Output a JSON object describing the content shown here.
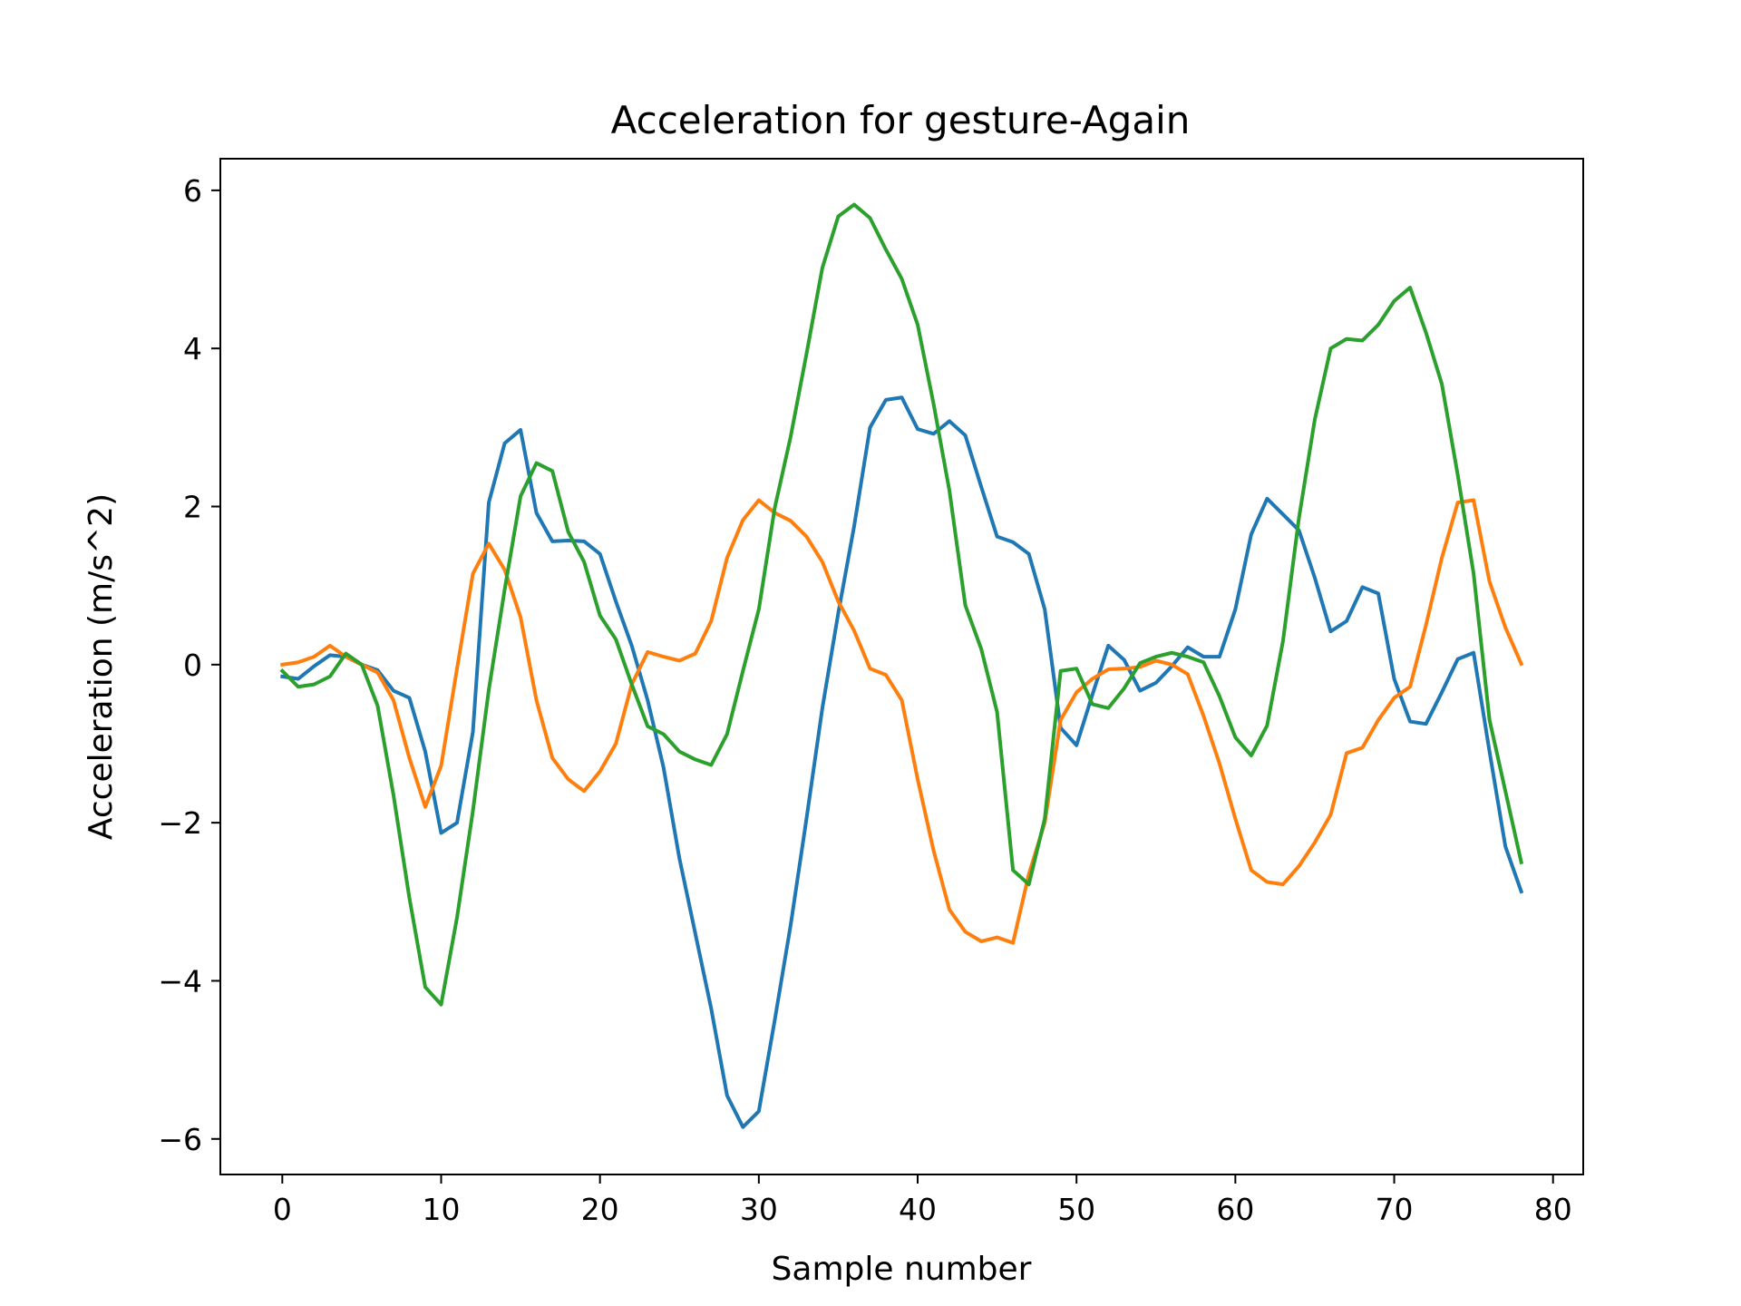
{
  "chart_data": {
    "type": "line",
    "title": "Acceleration for gesture-Again",
    "xlabel": "Sample number",
    "ylabel": "Acceleration (m/s^2)",
    "xlim": [
      -3.9,
      81.9
    ],
    "ylim": [
      -6.45,
      6.4
    ],
    "xticks": [
      0,
      10,
      20,
      30,
      40,
      50,
      60,
      70,
      80
    ],
    "xtick_labels": [
      "0",
      "10",
      "20",
      "30",
      "40",
      "50",
      "60",
      "70",
      "80"
    ],
    "yticks": [
      -6,
      -4,
      -2,
      0,
      2,
      4,
      6
    ],
    "ytick_labels": [
      "−6",
      "−4",
      "−2",
      "0",
      "2",
      "4",
      "6"
    ],
    "grid": false,
    "legend": "none",
    "series": [
      {
        "color": "#1f77b4",
        "values": [
          -0.15,
          -0.18,
          -0.02,
          0.12,
          0.1,
          0.0,
          -0.07,
          -0.33,
          -0.42,
          -1.1,
          -2.13,
          -2.0,
          -0.85,
          2.05,
          2.8,
          2.97,
          1.92,
          1.56,
          1.57,
          1.56,
          1.4,
          0.8,
          0.24,
          -0.45,
          -1.3,
          -2.45,
          -3.4,
          -4.35,
          -5.45,
          -5.85,
          -5.65,
          -4.5,
          -3.3,
          -1.95,
          -0.55,
          0.65,
          1.75,
          3.0,
          3.35,
          3.38,
          2.98,
          2.92,
          3.08,
          2.9,
          2.25,
          1.62,
          1.55,
          1.4,
          0.7,
          -0.8,
          -1.02,
          -0.38,
          0.24,
          0.06,
          -0.33,
          -0.23,
          -0.02,
          0.22,
          0.1,
          0.1,
          0.7,
          1.65,
          2.1,
          1.9,
          1.7,
          1.1,
          0.42,
          0.55,
          0.98,
          0.9,
          -0.18,
          -0.72,
          -0.75,
          -0.35,
          0.07,
          0.15,
          -1.1,
          -2.3,
          -2.87
        ]
      },
      {
        "color": "#ff7f0e",
        "values": [
          0.0,
          0.03,
          0.1,
          0.24,
          0.1,
          0.0,
          -0.1,
          -0.45,
          -1.18,
          -1.8,
          -1.28,
          -0.05,
          1.15,
          1.53,
          1.2,
          0.6,
          -0.45,
          -1.18,
          -1.45,
          -1.6,
          -1.35,
          -1.0,
          -0.25,
          0.16,
          0.1,
          0.05,
          0.14,
          0.55,
          1.35,
          1.83,
          2.08,
          1.92,
          1.82,
          1.62,
          1.3,
          0.8,
          0.43,
          -0.05,
          -0.13,
          -0.45,
          -1.45,
          -2.35,
          -3.1,
          -3.38,
          -3.5,
          -3.45,
          -3.52,
          -2.65,
          -2.0,
          -0.7,
          -0.35,
          -0.18,
          -0.06,
          -0.05,
          -0.03,
          0.05,
          0.0,
          -0.12,
          -0.65,
          -1.25,
          -1.95,
          -2.6,
          -2.75,
          -2.78,
          -2.55,
          -2.25,
          -1.9,
          -1.12,
          -1.05,
          -0.7,
          -0.42,
          -0.28,
          0.5,
          1.35,
          2.05,
          2.08,
          1.05,
          0.47,
          0.01
        ]
      },
      {
        "color": "#2ca02c",
        "values": [
          -0.08,
          -0.28,
          -0.25,
          -0.15,
          0.14,
          0.0,
          -0.52,
          -1.65,
          -2.95,
          -4.08,
          -4.3,
          -3.2,
          -1.85,
          -0.32,
          0.95,
          2.13,
          2.55,
          2.45,
          1.68,
          1.3,
          0.62,
          0.32,
          -0.25,
          -0.78,
          -0.88,
          -1.1,
          -1.2,
          -1.27,
          -0.88,
          -0.08,
          0.7,
          1.98,
          2.88,
          3.93,
          5.02,
          5.67,
          5.82,
          5.65,
          5.25,
          4.88,
          4.3,
          3.3,
          2.2,
          0.75,
          0.2,
          -0.6,
          -2.6,
          -2.78,
          -1.95,
          -0.08,
          -0.05,
          -0.5,
          -0.55,
          -0.3,
          0.02,
          0.1,
          0.15,
          0.1,
          0.03,
          -0.4,
          -0.92,
          -1.15,
          -0.77,
          0.3,
          1.85,
          3.1,
          4.0,
          4.12,
          4.1,
          4.3,
          4.6,
          4.77,
          4.2,
          3.55,
          2.4,
          1.15,
          -0.7,
          -1.6,
          -2.5
        ]
      }
    ]
  }
}
